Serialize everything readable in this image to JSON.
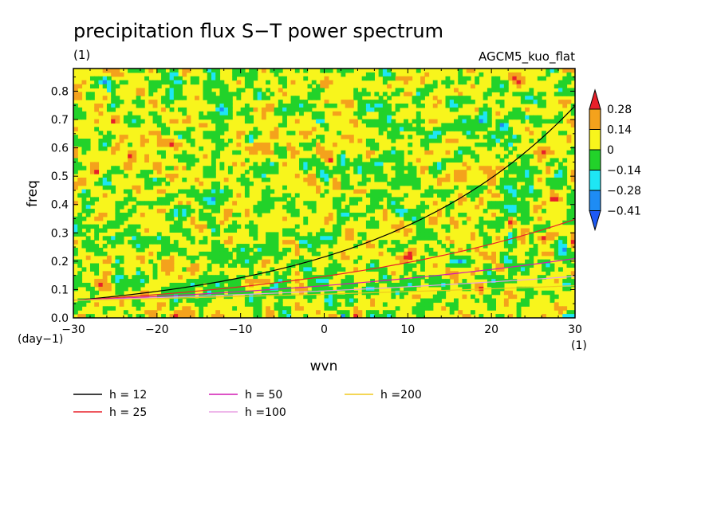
{
  "chart_data": {
    "type": "heatmap",
    "title": "precipitation flux S−T power spectrum",
    "subtitle_left": "(1)",
    "subtitle_right": "AGCM5_kuo_flat",
    "xlabel": "wvn",
    "ylabel": "freq",
    "x_unit": "(1)",
    "y_unit": "(day−1)",
    "xlim": [
      -30,
      30
    ],
    "ylim": [
      0,
      0.88
    ],
    "x_ticks": [
      -30,
      -20,
      -10,
      0,
      10,
      20,
      30
    ],
    "x_tick_labels": [
      "−30",
      "−20",
      "−10",
      "0",
      "10",
      "20",
      "30"
    ],
    "y_ticks": [
      0.0,
      0.1,
      0.2,
      0.3,
      0.4,
      0.5,
      0.6,
      0.7,
      0.8
    ],
    "y_tick_labels": [
      "0.0",
      "0.1",
      "0.2",
      "0.3",
      "0.4",
      "0.5",
      "0.6",
      "0.7",
      "0.8"
    ],
    "colorbar": {
      "levels": [
        0.28,
        0.14,
        0,
        -0.14,
        -0.28,
        -0.41
      ],
      "labels": [
        "0.28",
        "0.14",
        "0",
        "−0.14",
        "−0.28",
        "−0.41"
      ],
      "colors": [
        "#e8202a",
        "#f4a21c",
        "#f8f51c",
        "#22d22a",
        "#1ee6f4",
        "#1e8cf4",
        "#1e5af4"
      ]
    },
    "curves": [
      {
        "label": "h = 12",
        "h": 12,
        "color": "#000000"
      },
      {
        "label": "h = 25",
        "h": 25,
        "color": "#e8202a"
      },
      {
        "label": "h = 50",
        "h": 50,
        "color": "#d21ab4"
      },
      {
        "label": "h =100",
        "h": 100,
        "color": "#e8a0e4"
      },
      {
        "label": "h =200",
        "h": 200,
        "color": "#f0c81e"
      }
    ]
  }
}
